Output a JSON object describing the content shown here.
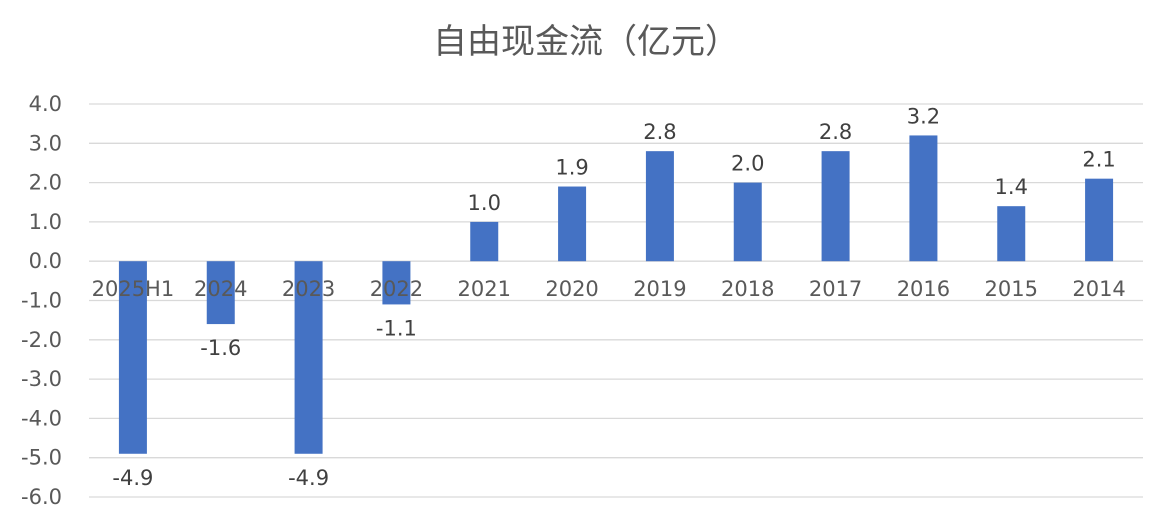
{
  "chart_data": {
    "type": "bar",
    "title": "自由现金流（亿元）",
    "xlabel": "",
    "ylabel": "",
    "categories": [
      "2025H1",
      "2024",
      "2023",
      "2022",
      "2021",
      "2020",
      "2019",
      "2018",
      "2017",
      "2016",
      "2015",
      "2014"
    ],
    "values": [
      -4.9,
      -1.6,
      -4.9,
      -1.1,
      1.0,
      1.9,
      2.8,
      2.0,
      2.8,
      3.2,
      1.4,
      2.1
    ],
    "data_labels": [
      "-4.9",
      "-1.6",
      "-4.9",
      "-1.1",
      "1.0",
      "1.9",
      "2.8",
      "2.0",
      "2.8",
      "3.2",
      "1.4",
      "2.1"
    ],
    "ylim": [
      -6,
      4
    ],
    "yticks": [
      "4.0",
      "3.0",
      "2.0",
      "1.0",
      "0.0",
      "-1.0",
      "-2.0",
      "-3.0",
      "-4.0",
      "-5.0",
      "-6.0"
    ],
    "ytick_values": [
      4,
      3,
      2,
      1,
      0,
      -1,
      -2,
      -3,
      -4,
      -5,
      -6
    ],
    "grid": true,
    "legend": "none",
    "bar_color": "#4472C4",
    "grid_color": "#D9D9D9"
  }
}
